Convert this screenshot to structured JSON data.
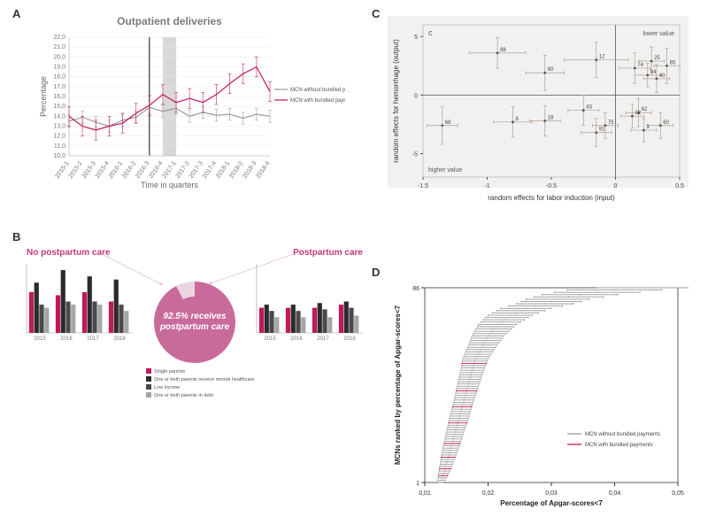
{
  "panelA": {
    "label": "A",
    "title": "Outpatient deliveries",
    "title_color": "#7a7a7a",
    "title_fontsize": 12,
    "xlabel": "Time in quarters",
    "ylabel": "Percentage",
    "label_fontsize": 9,
    "tick_fontsize": 7,
    "ylim": [
      10,
      22
    ],
    "ytick_step": 1,
    "x_categories": [
      "2015-1",
      "2015-2",
      "2015-3",
      "2015-4",
      "2016-1",
      "2016-2",
      "2016-3",
      "2016-4",
      "2017-1",
      "2017-2",
      "2017-3",
      "2017-4",
      "2018-1",
      "2018-2",
      "2018-3",
      "2018-4"
    ],
    "intervention_line_x": 6,
    "shaded_range": [
      7,
      8
    ],
    "shaded_color": "#d8d8d8",
    "series": [
      {
        "name": "MCN without bundled payments",
        "color": "#9b9b9b",
        "values": [
          13.5,
          13.9,
          13.4,
          13.0,
          13.6,
          13.9,
          14.9,
          14.5,
          14.8,
          14.0,
          14.4,
          14.1,
          14.2,
          13.8,
          14.2,
          14.0
        ],
        "err": 0.6
      },
      {
        "name": "MCN with bundled payments",
        "color": "#c2185b",
        "values": [
          14.0,
          13.0,
          12.6,
          13.0,
          13.3,
          14.3,
          15.1,
          16.2,
          15.4,
          15.8,
          15.4,
          16.2,
          17.3,
          18.3,
          19.0,
          16.5
        ],
        "err": 1.0
      }
    ],
    "legend_fontsize": 6,
    "axis_color": "#cccccc",
    "grid_color": "#e8e8e8",
    "line_width": 1.2,
    "err_cap": 2
  },
  "panelB": {
    "label": "B",
    "left_title": "No postpartum care",
    "right_title": "Postpartum care",
    "title_color": "#c23a7a",
    "title_fontsize": 10,
    "donut_pct": 92.5,
    "donut_text": "92.5% receives postpartum care",
    "donut_color": "#c86a9a",
    "donut_empty_color": "#ead4df",
    "donut_text_color": "#ffffff",
    "donut_text_fontsize": 10,
    "connector_color": "#e3bcd0",
    "years": [
      "2015",
      "2016",
      "2017",
      "2018"
    ],
    "categories": [
      {
        "name": "Single parents",
        "color": "#c2185b"
      },
      {
        "name": "One or both parents receive mental healthcare",
        "color": "#2b2b2b"
      },
      {
        "name": "Low income",
        "color": "#4a4a4a"
      },
      {
        "name": "One or both parents in debt",
        "color": "#a6a6a6"
      }
    ],
    "left_data": [
      [
        13,
        16,
        9,
        8
      ],
      [
        12,
        20,
        10,
        9
      ],
      [
        13,
        18,
        10,
        9
      ],
      [
        10,
        17,
        9,
        7
      ]
    ],
    "right_data": [
      [
        8,
        9,
        7,
        5
      ],
      [
        8,
        9,
        7,
        5
      ],
      [
        8,
        9.5,
        7.5,
        5
      ],
      [
        9,
        10,
        8,
        5.5
      ]
    ],
    "left_ymax": 22,
    "right_ymax": 22,
    "legend_fontsize": 5.5,
    "tick_fontsize": 6,
    "axis_color": "#999999"
  },
  "panelC": {
    "label": "C",
    "corner_label": "c",
    "bg_color": "#f1f1f1",
    "inner_bg": "#f1f1f1",
    "xlabel": "random effects for labor induction (input)",
    "ylabel": "random effects for hemorrhage (output)",
    "label_fontsize": 8,
    "tick_fontsize": 7,
    "xlim": [
      -1.5,
      0.5
    ],
    "ylim": [
      -7,
      6
    ],
    "xticks": [
      -1.5,
      -1,
      -0.5,
      0,
      0.5
    ],
    "yticks": [
      -5,
      0,
      5
    ],
    "quad_labels": {
      "tr": "lower value",
      "bl": "higher value"
    },
    "quad_label_fontsize": 7,
    "axis_line_color": "#555555",
    "point_color": "#b0a090",
    "point_label_fontsize": 6,
    "points": [
      {
        "id": "88",
        "x": -0.92,
        "y": 3.6,
        "xe": 0.22,
        "ye": 1.3
      },
      {
        "id": "80",
        "x": -0.55,
        "y": 1.9,
        "xe": 0.15,
        "ye": 1.5
      },
      {
        "id": "12",
        "x": -0.15,
        "y": 3.0,
        "xe": 0.25,
        "ye": 1.5
      },
      {
        "id": "74",
        "x": 0.15,
        "y": 2.3,
        "xe": 0.12,
        "ye": 1.3
      },
      {
        "id": "25",
        "x": 0.28,
        "y": 2.9,
        "xe": 0.1,
        "ye": 1.2
      },
      {
        "id": "85",
        "x": 0.4,
        "y": 2.5,
        "xe": 0.1,
        "ye": 1.5
      },
      {
        "id": "94",
        "x": 0.25,
        "y": 1.7,
        "xe": 0.1,
        "ye": 1.0
      },
      {
        "id": "40",
        "x": 0.32,
        "y": 1.4,
        "xe": 0.1,
        "ye": 1.2
      },
      {
        "id": "68",
        "x": -1.35,
        "y": -2.6,
        "xe": 0.12,
        "ye": 1.6
      },
      {
        "id": "8",
        "x": -0.8,
        "y": -2.3,
        "xe": 0.15,
        "ye": 1.3
      },
      {
        "id": "18",
        "x": -0.55,
        "y": -2.2,
        "xe": 0.12,
        "ye": 1.3
      },
      {
        "id": "43",
        "x": -0.25,
        "y": -1.3,
        "xe": 0.12,
        "ye": 1.3
      },
      {
        "id": "75",
        "x": -0.08,
        "y": -2.6,
        "xe": 0.1,
        "ye": 1.1
      },
      {
        "id": "91",
        "x": -0.15,
        "y": -3.2,
        "xe": 0.12,
        "ye": 1.2
      },
      {
        "id": "62",
        "x": 0.18,
        "y": -1.5,
        "xe": 0.1,
        "ye": 1.2
      },
      {
        "id": "32",
        "x": 0.13,
        "y": -1.8,
        "xe": 0.09,
        "ye": 1.0
      },
      {
        "id": "60",
        "x": 0.35,
        "y": -2.6,
        "xe": 0.1,
        "ye": 1.1
      },
      {
        "id": "3",
        "x": 0.22,
        "y": -3.0,
        "xe": 0.1,
        "ye": 1.0
      }
    ]
  },
  "panelD": {
    "label": "D",
    "xlabel": "Percentage of Apgar-scores<7",
    "ylabel": "MCNs ranked by percentage of Apgar-scores<7",
    "label_fontsize": 8,
    "tick_fontsize": 7,
    "xlim": [
      0.01,
      0.05
    ],
    "xticks": [
      0.01,
      0.02,
      0.03,
      0.04,
      0.05
    ],
    "ylim": [
      1,
      86
    ],
    "yticks": [
      1,
      86
    ],
    "axis_color": "#333333",
    "grid_color": "#ffffff",
    "series": [
      {
        "name": "MCN without bundled payments",
        "color": "#9b9b9b"
      },
      {
        "name": "MCN with bundled payments",
        "color": "#c2185b"
      }
    ],
    "legend_fontsize": 6,
    "n_items": 86,
    "bundled_ranks": [
      4,
      7,
      12,
      18,
      27,
      34,
      41,
      53
    ],
    "curve": [
      [
        1,
        0.0125,
        0.0005
      ],
      [
        5,
        0.013,
        0.0008
      ],
      [
        10,
        0.0135,
        0.001
      ],
      [
        15,
        0.014,
        0.0012
      ],
      [
        20,
        0.0145,
        0.0013
      ],
      [
        25,
        0.015,
        0.0014
      ],
      [
        30,
        0.0155,
        0.0015
      ],
      [
        35,
        0.016,
        0.0015
      ],
      [
        40,
        0.0165,
        0.0016
      ],
      [
        45,
        0.017,
        0.0017
      ],
      [
        50,
        0.0175,
        0.0018
      ],
      [
        55,
        0.018,
        0.002
      ],
      [
        60,
        0.019,
        0.0022
      ],
      [
        65,
        0.02,
        0.0025
      ],
      [
        70,
        0.0215,
        0.003
      ],
      [
        74,
        0.0235,
        0.0035
      ],
      [
        77,
        0.026,
        0.004
      ],
      [
        79,
        0.029,
        0.0045
      ],
      [
        81,
        0.031,
        0.005
      ],
      [
        83,
        0.0345,
        0.006
      ],
      [
        85,
        0.04,
        0.0075
      ],
      [
        86,
        0.046,
        0.009
      ]
    ]
  }
}
